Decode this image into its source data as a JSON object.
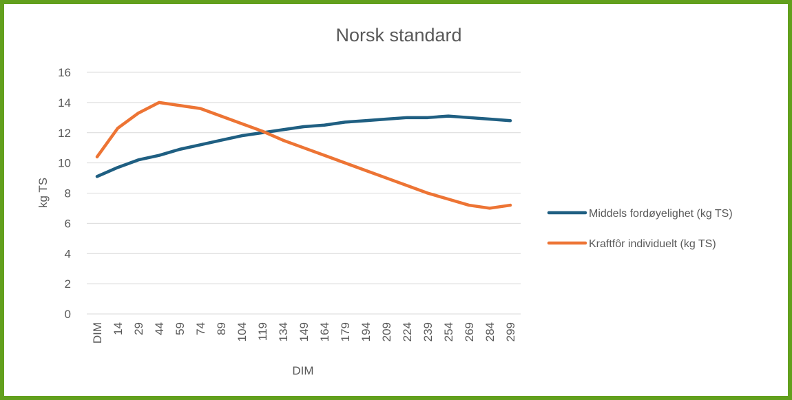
{
  "chart_data": {
    "type": "line",
    "title": "Norsk standard",
    "x_label": "DIM",
    "y_label": "kg TS",
    "categories": [
      "DIM",
      "14",
      "29",
      "44",
      "59",
      "74",
      "89",
      "104",
      "119",
      "134",
      "149",
      "164",
      "179",
      "194",
      "209",
      "224",
      "239",
      "254",
      "269",
      "284",
      "299"
    ],
    "series": [
      {
        "name": "Middels fordøyelighet (kg TS)",
        "color": "#1f5f82",
        "values": [
          9.1,
          9.7,
          10.2,
          10.5,
          10.9,
          11.2,
          11.5,
          11.8,
          12.0,
          12.2,
          12.4,
          12.5,
          12.7,
          12.8,
          12.9,
          13.0,
          13.0,
          13.1,
          13.0,
          12.9,
          12.8
        ]
      },
      {
        "name": "Kraftfôr individuelt (kg TS)",
        "color": "#ed7434",
        "values": [
          10.4,
          12.3,
          13.3,
          14.0,
          13.8,
          13.6,
          13.1,
          12.6,
          12.1,
          11.5,
          11.0,
          10.5,
          10.0,
          9.5,
          9.0,
          8.5,
          8.0,
          7.6,
          7.2,
          7.0,
          7.2
        ]
      }
    ],
    "ylim": [
      0,
      16
    ],
    "yticks": [
      0,
      2,
      4,
      6,
      8,
      10,
      12,
      14,
      16
    ],
    "grid": true,
    "legend": "right"
  }
}
